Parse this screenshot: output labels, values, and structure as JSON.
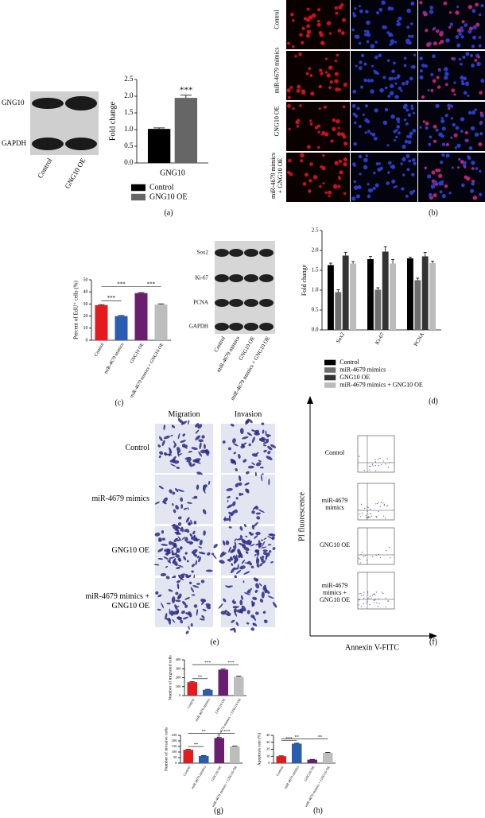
{
  "panel_labels": [
    "(a)",
    "(b)",
    "(c)",
    "(d)",
    "(e)",
    "(f)",
    "(g)",
    "(h)"
  ],
  "blot_a": {
    "rows": [
      "GNG10",
      "GAPDH"
    ],
    "lanes": [
      "Control",
      "GNG10 OE"
    ]
  },
  "panel_b": {
    "rows": [
      "Control",
      "miR-4679 mimics",
      "GNG10 OE",
      "miR-4679 mimics + GNG10 OE"
    ]
  },
  "blot_d": {
    "rows": [
      "Sox2",
      "Ki-67",
      "PCNA",
      "GAPDH"
    ],
    "lanes": [
      "Control",
      "miR-4679 mimics",
      "GNG10 OE",
      "miR-4679 mimics + GNG10 OE"
    ]
  },
  "panel_e": {
    "columns": [
      "Migration",
      "Invasion"
    ],
    "rows": [
      "Control",
      "miR-4679 mimics",
      "GNG10 OE",
      "miR-4679 mimics + GNG10 OE"
    ]
  },
  "panel_f": {
    "y_label": "PI fluorescence",
    "x_label": "Annexin V-FITC",
    "rows": [
      "Control",
      "miR-4679 mimics",
      "GNG10 OE",
      "miR-4679 mimics + GNG10 OE"
    ]
  },
  "chart_data": [
    {
      "type": "bar",
      "y_label": "Fold change",
      "x_label": "GNG10",
      "categories": [
        "GNG10"
      ],
      "series": [
        {
          "name": "Control",
          "color": "#000000",
          "values": [
            1.02
          ],
          "errors": [
            0.03
          ]
        },
        {
          "name": "GNG10 OE",
          "color": "#666666",
          "values": [
            1.95
          ],
          "errors": [
            0.08
          ]
        }
      ],
      "ylim": [
        0,
        2.5
      ],
      "yticks": [
        {
          "value": 0,
          "label": "0.0"
        },
        {
          "value": 0.5,
          "label": "0.5"
        },
        {
          "value": 1,
          "label": "1.0"
        },
        {
          "value": 1.5,
          "label": "1.5"
        },
        {
          "value": 2,
          "label": "2.0"
        },
        {
          "value": 2.5,
          "label": "2.5"
        }
      ],
      "annotations": [
        "***"
      ]
    },
    {
      "type": "bar",
      "y_label": "Percent of EdU⁺ cells (%)",
      "categories": [
        "Control",
        "miR-4679 mimics",
        "GNG10 OE",
        "miR-4679 mimics + GNG10 OE"
      ],
      "values": [
        29,
        20,
        39,
        29.5
      ],
      "errors": [
        0.5,
        0.5,
        0.5,
        0.6
      ],
      "colors": [
        "#e41a1c",
        "#2a5db0",
        "#6a1f6e",
        "#bdbdbd"
      ],
      "ylim": [
        0,
        50
      ],
      "yticks": [
        0,
        10,
        20,
        30,
        40,
        50
      ],
      "annotations": [
        "***",
        "***",
        "***"
      ]
    },
    {
      "type": "bar",
      "y_label": "Fold change",
      "categories": [
        "Sox2",
        "Ki-67",
        "PCNA"
      ],
      "series": [
        {
          "name": "Control",
          "color": "#000000",
          "values": [
            1.63,
            1.78,
            1.8
          ],
          "errors": [
            0.05,
            0.07,
            0.03
          ]
        },
        {
          "name": "miR-4679 mimics",
          "color": "#6f6f6f",
          "values": [
            0.95,
            1.01,
            1.25
          ],
          "errors": [
            0.06,
            0.05,
            0.05
          ]
        },
        {
          "name": "GNG10 OE",
          "color": "#333333",
          "values": [
            1.87,
            1.97,
            1.85
          ],
          "errors": [
            0.08,
            0.12,
            0.1
          ]
        },
        {
          "name": "miR-4679 mimics + GNG10 OE",
          "color": "#bbbbbb",
          "values": [
            1.67,
            1.67,
            1.68
          ],
          "errors": [
            0.05,
            0.1,
            0.05
          ]
        }
      ],
      "ylim": [
        0,
        2.5
      ],
      "yticks": [
        {
          "value": 0,
          "label": "0.0"
        },
        {
          "value": 0.5,
          "label": "0.5"
        },
        {
          "value": 1,
          "label": "1.0"
        },
        {
          "value": 1.5,
          "label": "1.5"
        },
        {
          "value": 2,
          "label": "2.0"
        },
        {
          "value": 2.5,
          "label": "2.5"
        }
      ]
    },
    {
      "type": "bar",
      "y_label": "Number of migrated cells",
      "categories": [
        "Control",
        "miR-4679 mimics",
        "GNG10 OE",
        "miR-4679 mimics + GNG10 OE"
      ],
      "values": [
        150,
        65,
        290,
        210
      ],
      "errors": [
        6,
        5,
        8,
        8
      ],
      "colors": [
        "#e41a1c",
        "#2a5db0",
        "#6a1f6e",
        "#bdbdbd"
      ],
      "ylim": [
        0,
        400
      ],
      "yticks": [
        0,
        100,
        200,
        300,
        400
      ],
      "annotations": [
        "**",
        "***",
        "***"
      ]
    },
    {
      "type": "bar",
      "y_label": "Number of invasive cells",
      "categories": [
        "Control",
        "miR-4679 mimics",
        "GNG10 OE",
        "miR-4679 mimics + GNG10 OE"
      ],
      "values": [
        120,
        65,
        225,
        150
      ],
      "errors": [
        4,
        3,
        5,
        4
      ],
      "colors": [
        "#e41a1c",
        "#2a5db0",
        "#6a1f6e",
        "#bdbdbd"
      ],
      "ylim": [
        0,
        250
      ],
      "yticks": [
        0,
        50,
        100,
        150,
        200,
        250
      ],
      "annotations": [
        "**",
        "**",
        "***"
      ]
    },
    {
      "type": "bar",
      "y_label": "Apoptosis rate (%)",
      "categories": [
        "Control",
        "miR-4679 mimics",
        "GNG10 OE",
        "miR-4679 mimics + GNG10 OE"
      ],
      "values": [
        10,
        28,
        5,
        15
      ],
      "errors": [
        0.5,
        0.6,
        0.4,
        0.5
      ],
      "colors": [
        "#e41a1c",
        "#2a5db0",
        "#6a1f6e",
        "#bdbdbd"
      ],
      "ylim": [
        0,
        40
      ],
      "yticks": [
        0,
        10,
        20,
        30,
        40
      ],
      "annotations": [
        "***",
        "**",
        "**"
      ]
    }
  ]
}
